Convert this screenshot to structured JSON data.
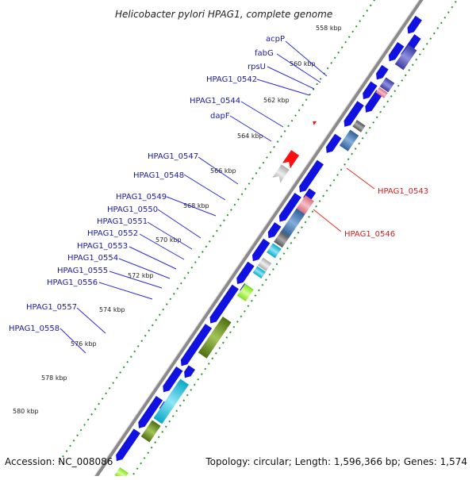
{
  "title": "Helicobacter pylori HPAG1, complete genome",
  "footer": {
    "accession": "Accession: NC_008086",
    "topology": "Topology: circular; Length: 1,596,366 bp; Genes: 1,574"
  },
  "kbp_ticks": [
    "558 kbp",
    "560 kbp",
    "562 kbp",
    "564 kbp",
    "566 kbp",
    "568 kbp",
    "570 kbp",
    "572 kbp",
    "574 kbp",
    "576 kbp",
    "578 kbp",
    "580 kbp"
  ],
  "gene_labels_blue": [
    "acpP",
    "fabG",
    "rpsU",
    "HPAG1_0542",
    "HPAG1_0544",
    "dapF",
    "HPAG1_0547",
    "HPAG1_0548",
    "HPAG1_0549",
    "HPAG1_0550",
    "HPAG1_0551",
    "HPAG1_0552",
    "HPAG1_0553",
    "HPAG1_0554",
    "HPAG1_0555",
    "HPAG1_0556",
    "HPAG1_0557",
    "HPAG1_0558"
  ],
  "gene_labels_red": [
    "HPAG1_0543",
    "HPAG1_0546"
  ],
  "colors": {
    "forward_gene": "#1212e0",
    "reverse_gene": "#ff1010",
    "backbone": "#8a8a8a",
    "dots": "#2a9a2a",
    "label_blue": "#1a1aa6",
    "label_red": "#d71d1d"
  }
}
